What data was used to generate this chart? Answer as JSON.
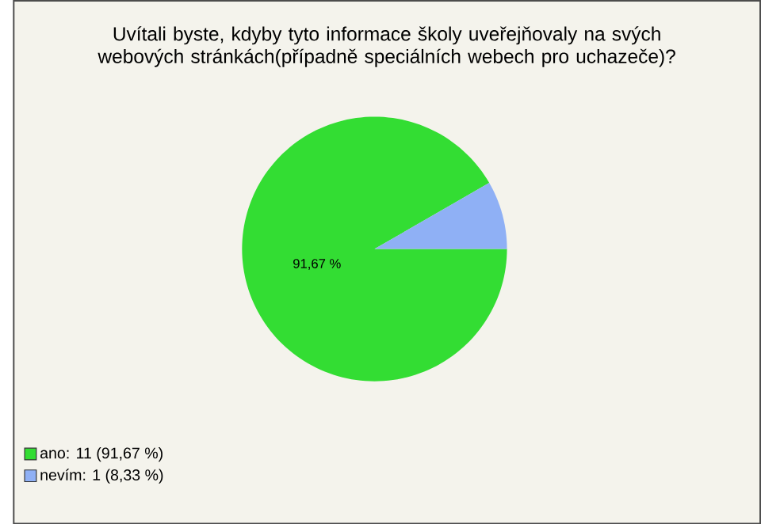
{
  "chart_data": {
    "type": "pie",
    "title": "Uvítali byste, kdyby tyto informace školy uveřejňovaly na svých webových stránkách(případně speciálních webech pro uchazeče)?",
    "categories": [
      "ano: 11 (91,67 %)",
      "nevím: 1 (8,33 %)"
    ],
    "values": [
      91.67,
      8.33
    ],
    "colors": [
      "#33dd33",
      "#8fb0f5"
    ],
    "value_labels": [
      "91,67 %",
      null
    ],
    "legend": "bottom left"
  }
}
